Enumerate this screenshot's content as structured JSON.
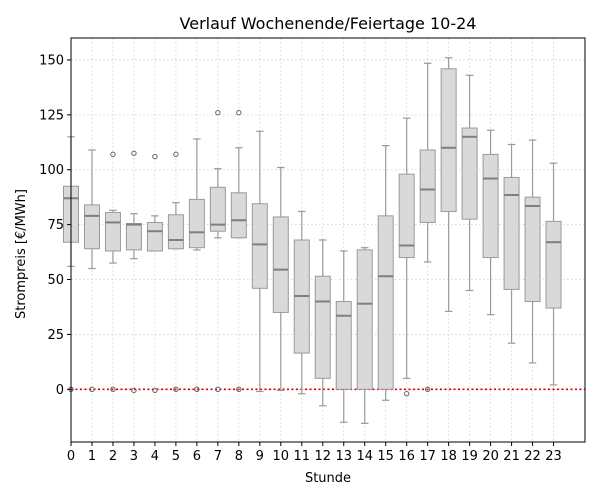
{
  "chart_data": {
    "type": "box",
    "title": "Verlauf Wochenende/Feiertage 10-24",
    "xlabel": "Stunde",
    "ylabel": "Strompreis [€/MWh]",
    "ylim": [
      -24,
      160
    ],
    "y_ticks": [
      0,
      25,
      50,
      75,
      100,
      125,
      150
    ],
    "x_ticks": [
      "0",
      "1",
      "2",
      "3",
      "4",
      "5",
      "6",
      "7",
      "8",
      "9",
      "10",
      "11",
      "12",
      "13",
      "14",
      "15",
      "16",
      "17",
      "18",
      "19",
      "20",
      "21",
      "22",
      "23"
    ],
    "grid": true,
    "reference_line": {
      "y": 0,
      "color": "#e00000",
      "style": "dotted"
    },
    "box_fill": "#d9d9d9",
    "box_edge": "#9a9a9a",
    "median_color": "#7f7f7f",
    "boxes": [
      {
        "hour": "0",
        "whislo": 56,
        "q1": 67,
        "med": 87,
        "q3": 92.5,
        "whishi": 115,
        "fliers": [
          0
        ]
      },
      {
        "hour": "1",
        "whislo": 55,
        "q1": 64,
        "med": 79,
        "q3": 84,
        "whishi": 109,
        "fliers": [
          0
        ]
      },
      {
        "hour": "2",
        "whislo": 57.5,
        "q1": 63,
        "med": 76,
        "q3": 80.5,
        "whishi": 81.5,
        "fliers": [
          107,
          0
        ]
      },
      {
        "hour": "3",
        "whislo": 59.5,
        "q1": 63.5,
        "med": 75,
        "q3": 75.5,
        "whishi": 80,
        "fliers": [
          107.5,
          -0.5
        ]
      },
      {
        "hour": "4",
        "whislo": 63,
        "q1": 63,
        "med": 72,
        "q3": 76,
        "whishi": 79,
        "fliers": [
          106,
          -0.5
        ]
      },
      {
        "hour": "5",
        "whislo": 64,
        "q1": 64,
        "med": 68,
        "q3": 79.5,
        "whishi": 85,
        "fliers": [
          107,
          0
        ]
      },
      {
        "hour": "6",
        "whislo": 63.5,
        "q1": 64.5,
        "med": 71.5,
        "q3": 86.5,
        "whishi": 114,
        "fliers": [
          0
        ]
      },
      {
        "hour": "7",
        "whislo": 69,
        "q1": 72,
        "med": 75,
        "q3": 92,
        "whishi": 100.5,
        "fliers": [
          126,
          0
        ]
      },
      {
        "hour": "8",
        "whislo": 69,
        "q1": 69,
        "med": 77,
        "q3": 89.5,
        "whishi": 110,
        "fliers": [
          126,
          0
        ]
      },
      {
        "hour": "9",
        "whislo": -1,
        "q1": 46,
        "med": 66,
        "q3": 84.5,
        "whishi": 117.5,
        "fliers": []
      },
      {
        "hour": "10",
        "whislo": -0.5,
        "q1": 35,
        "med": 54.5,
        "q3": 78.5,
        "whishi": 101,
        "fliers": []
      },
      {
        "hour": "11",
        "whislo": -2,
        "q1": 16.5,
        "med": 42.5,
        "q3": 68,
        "whishi": 81,
        "fliers": []
      },
      {
        "hour": "12",
        "whislo": -7.5,
        "q1": 5,
        "med": 40,
        "q3": 51.5,
        "whishi": 68,
        "fliers": []
      },
      {
        "hour": "13",
        "whislo": -15,
        "q1": 0,
        "med": 33.5,
        "q3": 40,
        "whishi": 63,
        "fliers": []
      },
      {
        "hour": "14",
        "whislo": -15.5,
        "q1": 0,
        "med": 39,
        "q3": 63.5,
        "whishi": 64.5,
        "fliers": []
      },
      {
        "hour": "15",
        "whislo": -5,
        "q1": 0,
        "med": 51.5,
        "q3": 79,
        "whishi": 111,
        "fliers": []
      },
      {
        "hour": "16",
        "whislo": 5,
        "q1": 60,
        "med": 65.5,
        "q3": 98,
        "whishi": 123.5,
        "fliers": [
          -2
        ]
      },
      {
        "hour": "17",
        "whislo": 58,
        "q1": 76,
        "med": 91,
        "q3": 109,
        "whishi": 148.5,
        "fliers": [
          0
        ]
      },
      {
        "hour": "18",
        "whislo": 35.5,
        "q1": 81,
        "med": 110,
        "q3": 146,
        "whishi": 151,
        "fliers": []
      },
      {
        "hour": "19",
        "whislo": 45,
        "q1": 77.5,
        "med": 115,
        "q3": 119,
        "whishi": 143,
        "fliers": []
      },
      {
        "hour": "20",
        "whislo": 34,
        "q1": 60,
        "med": 96,
        "q3": 107,
        "whishi": 118,
        "fliers": []
      },
      {
        "hour": "21",
        "whislo": 21,
        "q1": 45.5,
        "med": 88.5,
        "q3": 96.5,
        "whishi": 111.5,
        "fliers": []
      },
      {
        "hour": "22",
        "whislo": 12,
        "q1": 40,
        "med": 83.5,
        "q3": 87.5,
        "whishi": 113.5,
        "fliers": []
      },
      {
        "hour": "23",
        "whislo": 2,
        "q1": 37,
        "med": 67,
        "q3": 76.5,
        "whishi": 103,
        "fliers": []
      }
    ]
  }
}
